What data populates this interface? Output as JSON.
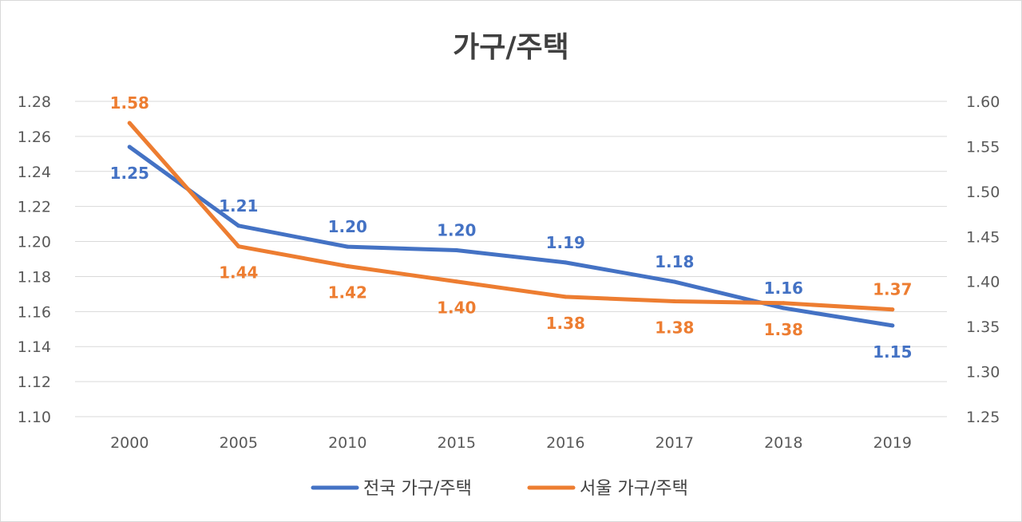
{
  "chart_data": {
    "type": "line",
    "title": "가구/주택",
    "categories": [
      "2000",
      "2005",
      "2010",
      "2015",
      "2016",
      "2017",
      "2018",
      "2019"
    ],
    "y_left": {
      "min": 1.1,
      "max": 1.28,
      "step": 0.02,
      "ticks": [
        "1.10",
        "1.12",
        "1.14",
        "1.16",
        "1.18",
        "1.20",
        "1.22",
        "1.24",
        "1.26",
        "1.28"
      ]
    },
    "y_right": {
      "min": 1.25,
      "max": 1.6,
      "step": 0.05,
      "ticks": [
        "1.25",
        "1.30",
        "1.35",
        "1.40",
        "1.45",
        "1.50",
        "1.55",
        "1.60"
      ]
    },
    "grid": true,
    "legend_position": "bottom",
    "series": [
      {
        "name": "전국 가구/주택",
        "axis": "left",
        "color": "#4472c4",
        "values": [
          1.254,
          1.209,
          1.197,
          1.195,
          1.188,
          1.177,
          1.162,
          1.152
        ],
        "labels": [
          "1.25",
          "1.21",
          "1.20",
          "1.20",
          "1.19",
          "1.18",
          "1.16",
          "1.15"
        ],
        "label_side": [
          "below",
          "above",
          "above",
          "above",
          "above",
          "above",
          "above",
          "below"
        ]
      },
      {
        "name": "서울 가구/주택",
        "axis": "right",
        "color": "#ed7d31",
        "values": [
          1.576,
          1.439,
          1.417,
          1.4,
          1.383,
          1.378,
          1.376,
          1.369
        ],
        "labels": [
          "1.58",
          "1.44",
          "1.42",
          "1.40",
          "1.38",
          "1.38",
          "1.38",
          "1.37"
        ],
        "label_side": [
          "above",
          "below",
          "below",
          "below",
          "below",
          "below",
          "below",
          "above"
        ]
      }
    ]
  }
}
